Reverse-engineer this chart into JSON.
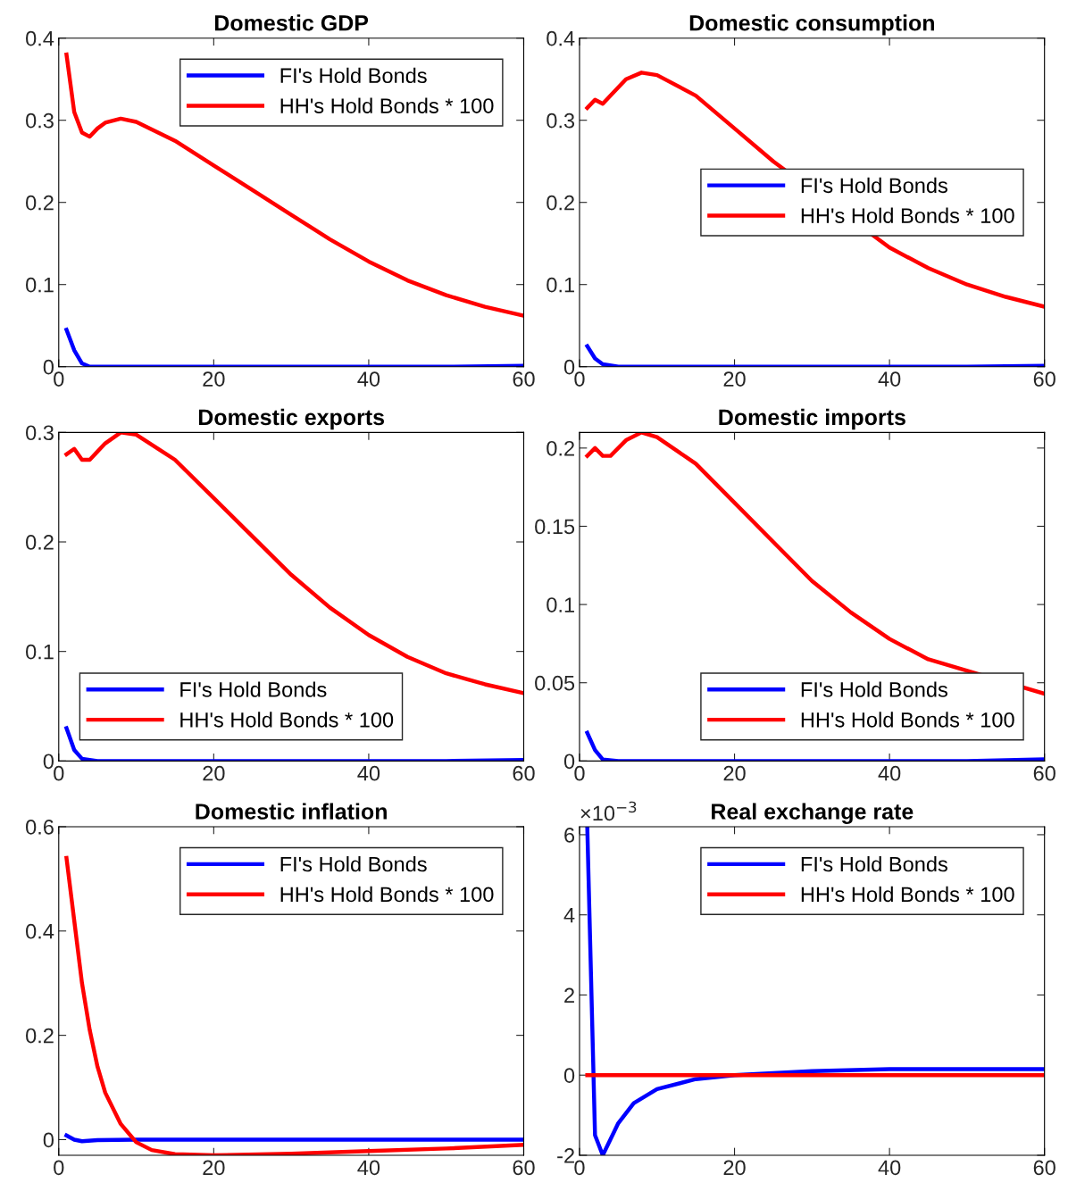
{
  "chart_data": [
    {
      "type": "line",
      "title": "Domestic GDP",
      "xlim": [
        0,
        60
      ],
      "xticks": [
        0,
        20,
        40,
        60
      ],
      "ylim": [
        0,
        0.4
      ],
      "yticks": [
        0,
        0.1,
        0.2,
        0.3,
        0.4
      ],
      "legend": "top right",
      "grid": false,
      "series": [
        {
          "name": "FI's Hold Bonds",
          "color": "#0000ff",
          "x": [
            1,
            2,
            3,
            4,
            6,
            10,
            20,
            30,
            40,
            50,
            60
          ],
          "values": [
            0.045,
            0.02,
            0.004,
            0.0,
            0.0,
            0.0,
            0.0,
            0.0,
            0.0,
            0.0,
            0.001
          ]
        },
        {
          "name": "HH's Hold Bonds * 100",
          "color": "#ff0000",
          "x": [
            1,
            2,
            3,
            4,
            5,
            6,
            8,
            10,
            15,
            20,
            25,
            30,
            35,
            40,
            45,
            50,
            55,
            60
          ],
          "values": [
            0.38,
            0.31,
            0.285,
            0.28,
            0.29,
            0.297,
            0.302,
            0.298,
            0.275,
            0.245,
            0.215,
            0.185,
            0.155,
            0.128,
            0.105,
            0.087,
            0.073,
            0.062
          ]
        }
      ]
    },
    {
      "type": "line",
      "title": "Domestic consumption",
      "xlim": [
        0,
        60
      ],
      "xticks": [
        0,
        20,
        40,
        60
      ],
      "ylim": [
        0,
        0.4
      ],
      "yticks": [
        0,
        0.1,
        0.2,
        0.3,
        0.4
      ],
      "legend": "center right",
      "grid": false,
      "series": [
        {
          "name": "FI's Hold Bonds",
          "color": "#0000ff",
          "x": [
            1,
            2,
            3,
            5,
            10,
            20,
            30,
            40,
            50,
            60
          ],
          "values": [
            0.025,
            0.01,
            0.003,
            0.0,
            0.0,
            0.0,
            0.0,
            0.0,
            0.0,
            0.001
          ]
        },
        {
          "name": "HH's Hold Bonds * 100",
          "color": "#ff0000",
          "x": [
            1,
            2,
            3,
            4,
            6,
            8,
            10,
            15,
            20,
            25,
            40,
            45,
            50,
            55,
            60
          ],
          "values": [
            0.315,
            0.325,
            0.32,
            0.33,
            0.35,
            0.358,
            0.355,
            0.33,
            0.29,
            0.25,
            0.145,
            0.12,
            0.1,
            0.085,
            0.073
          ]
        }
      ]
    },
    {
      "type": "line",
      "title": "Domestic exports",
      "xlim": [
        0,
        60
      ],
      "xticks": [
        0,
        20,
        40,
        60
      ],
      "ylim": [
        0,
        0.3
      ],
      "yticks": [
        0,
        0.1,
        0.2,
        0.3
      ],
      "legend": "bottom left",
      "grid": false,
      "series": [
        {
          "name": "FI's Hold Bonds",
          "color": "#0000ff",
          "x": [
            1,
            2,
            3,
            5,
            10,
            20,
            30,
            40,
            50,
            60
          ],
          "values": [
            0.03,
            0.01,
            0.002,
            0.0,
            0.0,
            0.0,
            0.0,
            0.0,
            0.0,
            0.001
          ]
        },
        {
          "name": "HH's Hold Bonds * 100",
          "color": "#ff0000",
          "x": [
            1,
            2,
            3,
            4,
            6,
            8,
            10,
            15,
            20,
            25,
            30,
            35,
            40,
            45,
            50,
            55,
            60
          ],
          "values": [
            0.28,
            0.285,
            0.275,
            0.275,
            0.29,
            0.3,
            0.298,
            0.275,
            0.24,
            0.205,
            0.17,
            0.14,
            0.115,
            0.095,
            0.08,
            0.07,
            0.062
          ]
        }
      ]
    },
    {
      "type": "line",
      "title": "Domestic imports",
      "xlim": [
        0,
        60
      ],
      "xticks": [
        0,
        20,
        40,
        60
      ],
      "ylim": [
        0,
        0.21
      ],
      "yticks": [
        0,
        0.05,
        0.1,
        0.15,
        0.2
      ],
      "legend": "bottom right",
      "grid": false,
      "series": [
        {
          "name": "FI's Hold Bonds",
          "color": "#0000ff",
          "x": [
            1,
            2,
            3,
            5,
            10,
            20,
            30,
            40,
            50,
            60
          ],
          "values": [
            0.018,
            0.007,
            0.001,
            0.0,
            0.0,
            0.0,
            0.0,
            0.0,
            0.0,
            0.001
          ]
        },
        {
          "name": "HH's Hold Bonds * 100",
          "color": "#ff0000",
          "x": [
            1,
            2,
            3,
            4,
            6,
            8,
            10,
            15,
            20,
            25,
            30,
            35,
            40,
            45,
            60
          ],
          "values": [
            0.195,
            0.2,
            0.195,
            0.195,
            0.205,
            0.21,
            0.207,
            0.19,
            0.165,
            0.14,
            0.115,
            0.095,
            0.078,
            0.065,
            0.043
          ]
        }
      ]
    },
    {
      "type": "line",
      "title": "Domestic inflation",
      "xlim": [
        0,
        60
      ],
      "xticks": [
        0,
        20,
        40,
        60
      ],
      "ylim": [
        -0.03,
        0.6
      ],
      "yticks": [
        0,
        0.2,
        0.4,
        0.6
      ],
      "legend": "top right",
      "grid": false,
      "series": [
        {
          "name": "FI's Hold Bonds",
          "color": "#0000ff",
          "x": [
            1,
            2,
            3,
            5,
            10,
            20,
            40,
            60
          ],
          "values": [
            0.008,
            0.0,
            -0.003,
            -0.001,
            0.0,
            0.0,
            0.0,
            0.0
          ]
        },
        {
          "name": "HH's Hold Bonds * 100",
          "color": "#ff0000",
          "x": [
            1,
            2,
            3,
            4,
            5,
            6,
            8,
            10,
            12,
            15,
            20,
            30,
            40,
            50,
            60
          ],
          "values": [
            0.54,
            0.42,
            0.3,
            0.21,
            0.14,
            0.09,
            0.03,
            -0.005,
            -0.02,
            -0.028,
            -0.03,
            -0.027,
            -0.022,
            -0.017,
            -0.01
          ]
        }
      ]
    },
    {
      "type": "line",
      "title": "Real exchange rate",
      "xlim": [
        0,
        60
      ],
      "xticks": [
        0,
        20,
        40,
        60
      ],
      "ylim": [
        -2,
        6.2
      ],
      "yticks": [
        -2,
        0,
        2,
        4,
        6
      ],
      "annotations": [
        "×10$^{−3}$"
      ],
      "legend": "top right",
      "grid": false,
      "series": [
        {
          "name": "FI's Hold Bonds",
          "color": "#0000ff",
          "x": [
            1,
            2,
            3,
            4,
            5,
            7,
            10,
            15,
            20,
            30,
            40,
            60
          ],
          "values": [
            6.2,
            -1.5,
            -2,
            -1.6,
            -1.2,
            -0.7,
            -0.35,
            -0.1,
            0.0,
            0.1,
            0.15,
            0.15
          ]
        },
        {
          "name": "HH's Hold Bonds * 100",
          "color": "#ff0000",
          "x": [
            1,
            60
          ],
          "values": [
            0.0,
            0.0
          ]
        }
      ]
    }
  ]
}
